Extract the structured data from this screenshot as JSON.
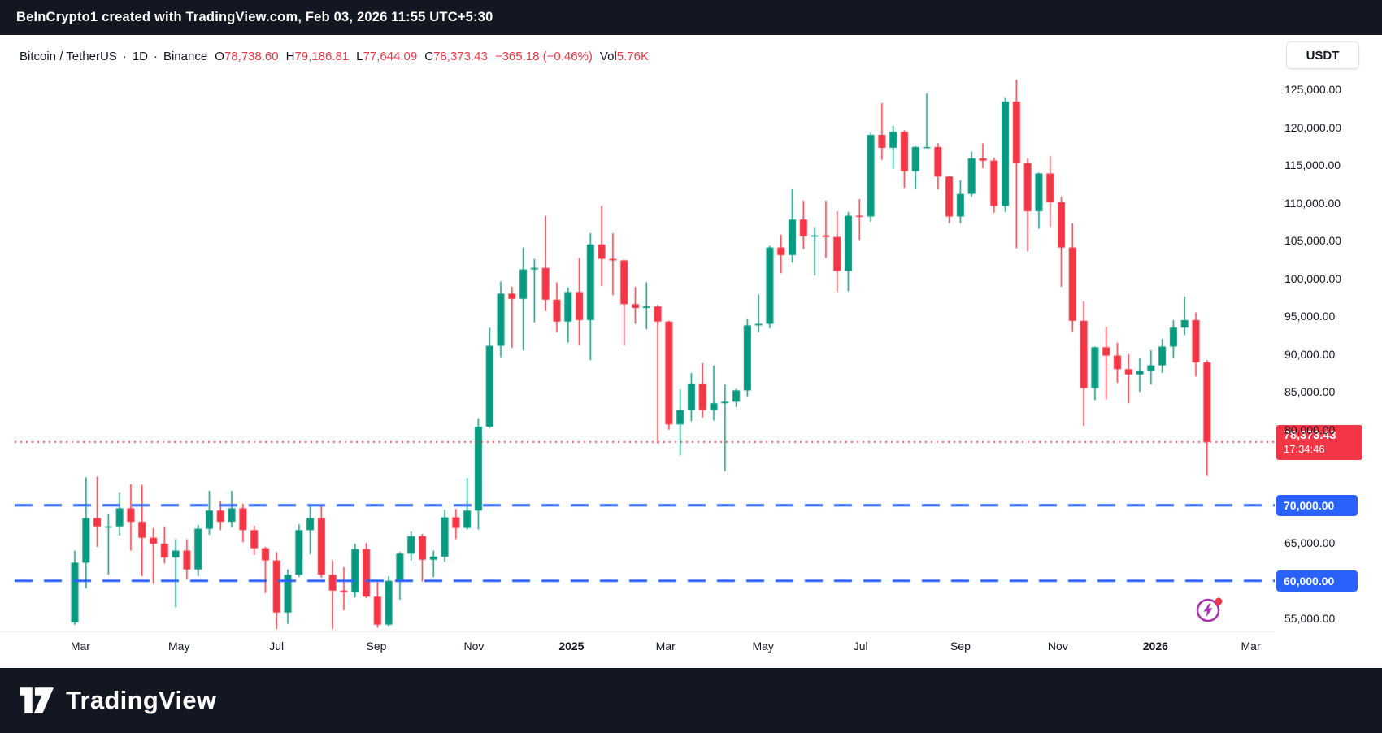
{
  "attribution_bar": {
    "text": "BeInCrypto1 created with TradingView.com, Feb 03, 2026 11:55 UTC+5:30"
  },
  "header": {
    "symbol": "Bitcoin / TetherUS",
    "sep": "·",
    "interval": "1D",
    "exchange": "Binance",
    "ohlc": {
      "o_label": "O",
      "o": "78,738.60",
      "h_label": "H",
      "h": "79,186.81",
      "l_label": "L",
      "l": "77,644.09",
      "c_label": "C",
      "c": "78,373.43"
    },
    "change": "−365.18 (−0.46%)",
    "vol_label": "Vol",
    "volume": "5.76K",
    "currency_button": "USDT"
  },
  "price_axis": {
    "last_price_label": {
      "price": "78,373.43",
      "countdown": "17:34:46"
    }
  },
  "footer": {
    "brand": "TradingView"
  },
  "colors": {
    "up": "#089981",
    "down": "#F23645",
    "level_blue": "#2962FF",
    "bar_bg": "#131722",
    "panel_bg": "#ffffff",
    "text_dark": "#131722",
    "flash_purple": "#A832B0"
  },
  "chart_data": {
    "type": "candlestick",
    "title": "Bitcoin / TetherUS, 1D, Binance",
    "symbol": "BTCUSDT",
    "granularity_note": "weekly approximation of the daily candles shown, values in USDT",
    "start_date": "2024-02-26",
    "end_date": "2026-02-03",
    "ylim": [
      53300,
      127500
    ],
    "last_price": 78373.43,
    "grid": false,
    "levels": [
      {
        "value": 70000,
        "label": "70,000.00",
        "color": "#2962FF",
        "style": "dashed"
      },
      {
        "value": 60000,
        "label": "60,000.00",
        "color": "#2962FF",
        "style": "dashed"
      }
    ],
    "y_ticks": [
      {
        "value": 125000,
        "label": "125,000.00"
      },
      {
        "value": 120000,
        "label": "120,000.00"
      },
      {
        "value": 115000,
        "label": "115,000.00"
      },
      {
        "value": 110000,
        "label": "110,000.00"
      },
      {
        "value": 105000,
        "label": "105,000.00"
      },
      {
        "value": 100000,
        "label": "100,000.00"
      },
      {
        "value": 95000,
        "label": "95,000.00"
      },
      {
        "value": 90000,
        "label": "90,000.00"
      },
      {
        "value": 85000,
        "label": "85,000.00"
      },
      {
        "value": 80000,
        "label": "80,000.00"
      },
      {
        "value": 65000,
        "label": "65,000.00"
      },
      {
        "value": 55000,
        "label": "55,000.00"
      }
    ],
    "x_ticks": [
      {
        "label": "Mar",
        "week": 0.5
      },
      {
        "label": "May",
        "week": 9.3
      },
      {
        "label": "Jul",
        "week": 18.0
      },
      {
        "label": "Sep",
        "week": 26.9
      },
      {
        "label": "Nov",
        "week": 35.6
      },
      {
        "label": "2025",
        "week": 44.3,
        "year": true
      },
      {
        "label": "Mar",
        "week": 52.7
      },
      {
        "label": "May",
        "week": 61.4
      },
      {
        "label": "Jul",
        "week": 70.1
      },
      {
        "label": "Sep",
        "week": 79.0
      },
      {
        "label": "Nov",
        "week": 87.7
      },
      {
        "label": "2026",
        "week": 96.4,
        "year": true
      },
      {
        "label": "Mar",
        "week": 104.9
      }
    ],
    "layout": {
      "x0": 74,
      "dx": 13.79,
      "body_w": 9
    },
    "candles": [
      [
        54500,
        64000,
        54200,
        62400
      ],
      [
        62400,
        73700,
        59000,
        68300
      ],
      [
        68300,
        73800,
        64500,
        67200
      ],
      [
        67200,
        68900,
        60800,
        67200
      ],
      [
        67200,
        71600,
        66000,
        69600
      ],
      [
        69600,
        72800,
        64000,
        67800
      ],
      [
        67800,
        72700,
        60600,
        65700
      ],
      [
        65700,
        67000,
        59600,
        64900
      ],
      [
        64900,
        67200,
        62300,
        63100
      ],
      [
        63100,
        65500,
        56500,
        64000
      ],
      [
        64000,
        65500,
        60200,
        61500
      ],
      [
        61500,
        67400,
        60600,
        66900
      ],
      [
        66900,
        71900,
        66100,
        69300
      ],
      [
        69300,
        70600,
        66700,
        67800
      ],
      [
        67800,
        71900,
        67100,
        69600
      ],
      [
        69600,
        70200,
        65100,
        66700
      ],
      [
        66700,
        67300,
        63400,
        64300
      ],
      [
        64300,
        64500,
        58400,
        62700
      ],
      [
        62700,
        63800,
        53600,
        55800
      ],
      [
        55800,
        61500,
        54300,
        60800
      ],
      [
        60800,
        67500,
        60500,
        66700
      ],
      [
        66700,
        69900,
        63500,
        68300
      ],
      [
        68300,
        70000,
        60400,
        60800
      ],
      [
        60800,
        62700,
        53600,
        58700
      ],
      [
        58700,
        61800,
        56100,
        58500
      ],
      [
        58500,
        64900,
        57800,
        64200
      ],
      [
        64200,
        65000,
        57700,
        57900
      ],
      [
        57900,
        59800,
        53800,
        54200
      ],
      [
        54200,
        60600,
        54000,
        60000
      ],
      [
        60000,
        63800,
        57500,
        63600
      ],
      [
        63600,
        66500,
        62700,
        65900
      ],
      [
        65900,
        66200,
        59900,
        62800
      ],
      [
        62800,
        64000,
        60500,
        63200
      ],
      [
        63200,
        69400,
        62500,
        68400
      ],
      [
        68400,
        69500,
        65500,
        67000
      ],
      [
        67000,
        73600,
        66800,
        69300
      ],
      [
        69300,
        81500,
        66800,
        80400
      ],
      [
        80400,
        93500,
        80200,
        91100
      ],
      [
        91100,
        99600,
        89600,
        98000
      ],
      [
        98000,
        98900,
        90800,
        97300
      ],
      [
        97300,
        104100,
        90500,
        101200
      ],
      [
        101200,
        102600,
        94200,
        101400
      ],
      [
        101400,
        108300,
        95700,
        97200
      ],
      [
        97200,
        99500,
        92900,
        94300
      ],
      [
        94300,
        98800,
        91500,
        98200
      ],
      [
        98200,
        102700,
        91200,
        94500
      ],
      [
        94500,
        106000,
        89200,
        104500
      ],
      [
        104500,
        109600,
        99000,
        102600
      ],
      [
        102600,
        106000,
        97800,
        102400
      ],
      [
        102400,
        102500,
        91200,
        96600
      ],
      [
        96600,
        98900,
        94000,
        96100
      ],
      [
        96100,
        99500,
        93300,
        96300
      ],
      [
        96300,
        96500,
        78200,
        94300
      ],
      [
        94300,
        94400,
        80000,
        80700
      ],
      [
        80700,
        85300,
        76600,
        82600
      ],
      [
        82600,
        87500,
        81100,
        86100
      ],
      [
        86100,
        88800,
        81600,
        82600
      ],
      [
        82600,
        88500,
        81200,
        83500
      ],
      [
        83500,
        86000,
        74500,
        83700
      ],
      [
        83700,
        85400,
        83000,
        85200
      ],
      [
        85200,
        94700,
        84400,
        93800
      ],
      [
        93800,
        97900,
        92900,
        94000
      ],
      [
        94000,
        104300,
        93400,
        104100
      ],
      [
        104100,
        105800,
        100700,
        103100
      ],
      [
        103100,
        111900,
        102100,
        107800
      ],
      [
        107800,
        110300,
        103900,
        105600
      ],
      [
        105600,
        106800,
        100400,
        105700
      ],
      [
        105700,
        110300,
        102700,
        105500
      ],
      [
        105500,
        108900,
        98200,
        101000
      ],
      [
        101000,
        108800,
        98300,
        108300
      ],
      [
        108300,
        110500,
        105100,
        108200
      ],
      [
        108200,
        119300,
        107500,
        119000
      ],
      [
        119000,
        123200,
        115700,
        117300
      ],
      [
        117300,
        120200,
        114500,
        119400
      ],
      [
        119400,
        119600,
        112000,
        114200
      ],
      [
        114200,
        117500,
        111900,
        117400
      ],
      [
        117400,
        124500,
        117300,
        117400
      ],
      [
        117400,
        117900,
        111800,
        113500
      ],
      [
        113500,
        113600,
        107300,
        108200
      ],
      [
        108200,
        113000,
        107300,
        111200
      ],
      [
        111200,
        116800,
        110800,
        115900
      ],
      [
        115900,
        117900,
        114600,
        115600
      ],
      [
        115600,
        116000,
        108700,
        109600
      ],
      [
        109600,
        124000,
        108800,
        123400
      ],
      [
        123400,
        126300,
        104000,
        115300
      ],
      [
        115300,
        115900,
        103600,
        108900
      ],
      [
        108900,
        114000,
        106600,
        113900
      ],
      [
        113900,
        116200,
        106800,
        110100
      ],
      [
        110100,
        110800,
        98900,
        104100
      ],
      [
        104100,
        107300,
        93000,
        94400
      ],
      [
        94400,
        97000,
        80500,
        85500
      ],
      [
        85500,
        91000,
        83900,
        90900
      ],
      [
        90900,
        93600,
        84000,
        89800
      ],
      [
        89800,
        91500,
        86200,
        88000
      ],
      [
        88000,
        90000,
        83500,
        87300
      ],
      [
        87300,
        89500,
        85000,
        87800
      ],
      [
        87800,
        90500,
        86000,
        88500
      ],
      [
        88500,
        92000,
        87500,
        91000
      ],
      [
        91000,
        94500,
        89500,
        93500
      ],
      [
        93500,
        97600,
        92500,
        94500
      ],
      [
        94500,
        95500,
        87000,
        88900
      ],
      [
        88900,
        89200,
        73900,
        78373.43
      ]
    ]
  }
}
